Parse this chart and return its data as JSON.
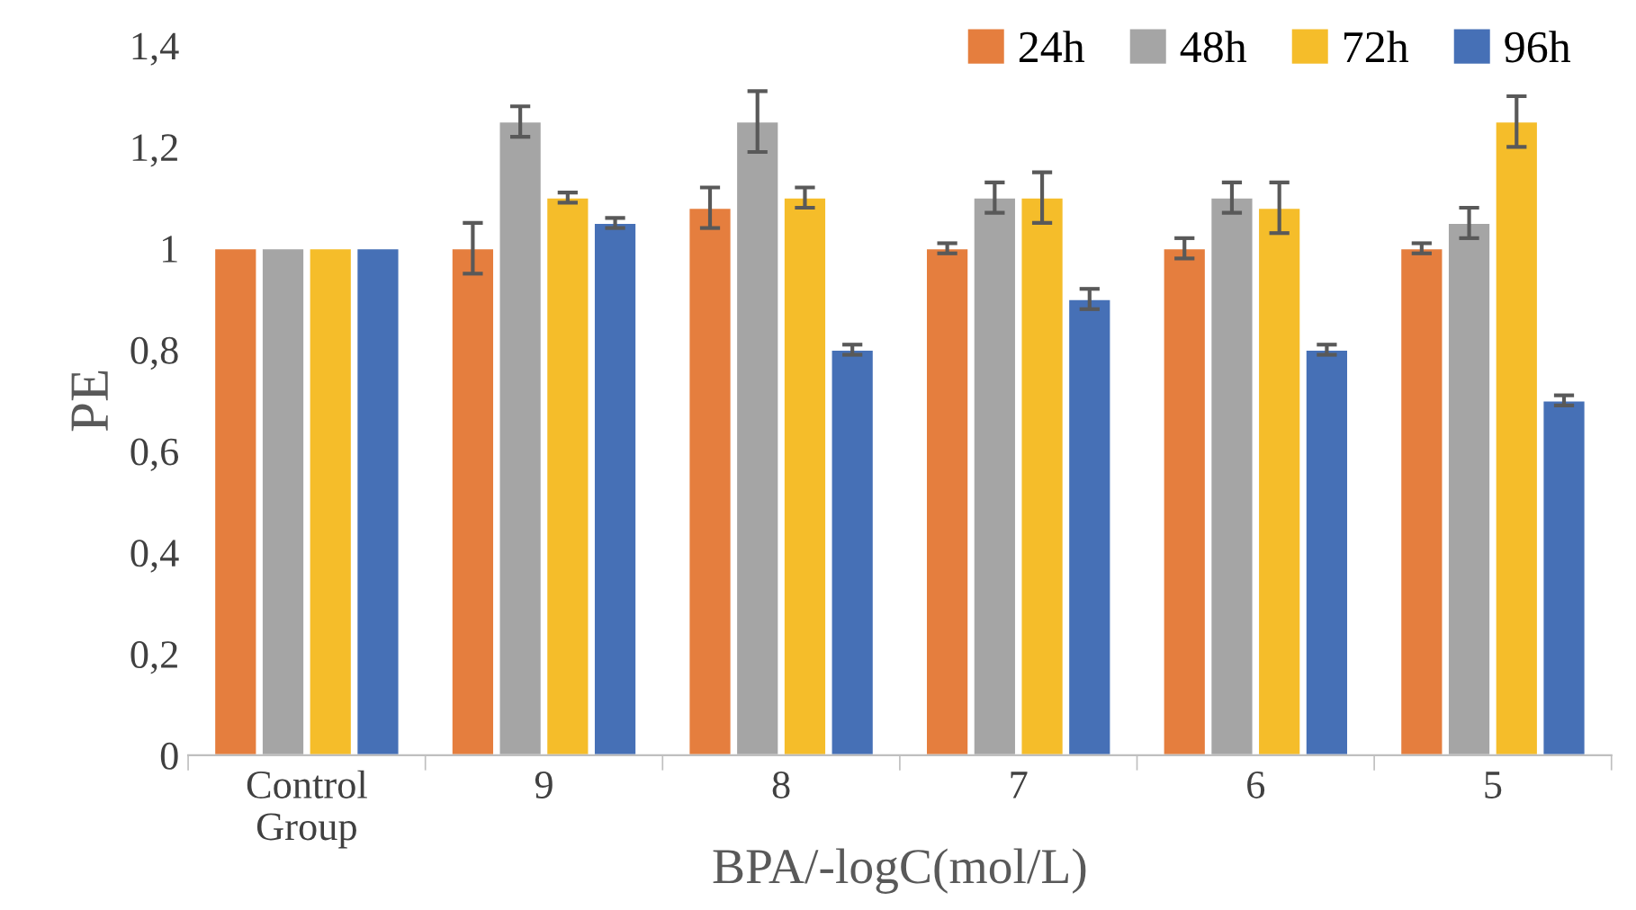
{
  "chart_data": {
    "type": "bar",
    "xlabel": "BPA/-logC(mol/L)",
    "ylabel": "PE",
    "categories": [
      "Control\nGroup",
      "9",
      "8",
      "7",
      "6",
      "5"
    ],
    "series": [
      {
        "name": "24h",
        "color": "#e57e3e",
        "values": [
          1,
          1,
          1.08,
          1,
          1,
          1
        ],
        "errors": [
          null,
          0.05,
          0.04,
          0.01,
          0.02,
          0.01
        ]
      },
      {
        "name": "48h",
        "color": "#a5a5a5",
        "values": [
          1,
          1.25,
          1.25,
          1.1,
          1.1,
          1.05
        ],
        "errors": [
          null,
          0.03,
          0.06,
          0.03,
          0.03,
          0.03
        ]
      },
      {
        "name": "72h",
        "color": "#f5bd2a",
        "values": [
          1,
          1.1,
          1.1,
          1.1,
          1.08,
          1.25
        ],
        "errors": [
          null,
          0.01,
          0.02,
          0.05,
          0.05,
          0.05
        ]
      },
      {
        "name": "96h",
        "color": "#4670b6",
        "values": [
          1,
          1.05,
          0.8,
          0.9,
          0.8,
          0.7
        ],
        "errors": [
          null,
          0.01,
          0.01,
          0.02,
          0.01,
          0.01
        ]
      }
    ],
    "ylim": [
      0,
      1.4
    ],
    "yticks": [
      {
        "value": 0,
        "label": "0"
      },
      {
        "value": 0.2,
        "label": "0,2"
      },
      {
        "value": 0.4,
        "label": "0,4"
      },
      {
        "value": 0.6,
        "label": "0,6"
      },
      {
        "value": 0.8,
        "label": "0,8"
      },
      {
        "value": 1,
        "label": "1"
      },
      {
        "value": 1.2,
        "label": "1,2"
      },
      {
        "value": 1.4,
        "label": "1,4"
      }
    ],
    "grid": false,
    "legend": "top right"
  }
}
